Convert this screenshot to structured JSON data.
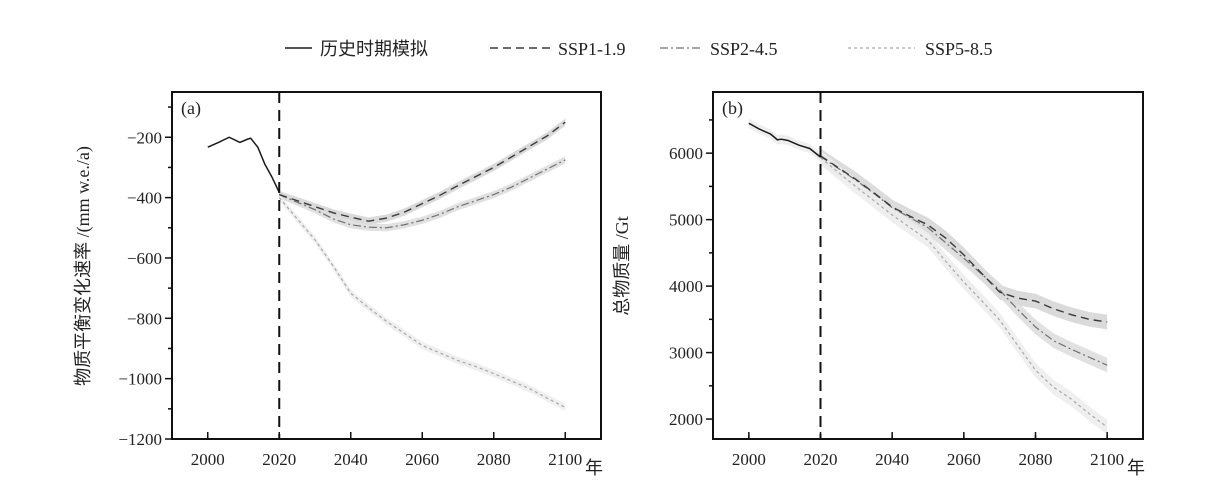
{
  "colors": {
    "history": "#1a1a1a",
    "ssp119": "#3a3a3a",
    "ssp245": "#707070",
    "ssp585": "#a8a8a8",
    "band_ssp119": "#d4d4d4",
    "band_ssp245": "#dcdcdc",
    "band_ssp585": "#ececec"
  },
  "legend": [
    {
      "key": "history",
      "label": "历史时期模拟",
      "style": "solid"
    },
    {
      "key": "ssp119",
      "label": "SSP1-1.9",
      "style": "dash"
    },
    {
      "key": "ssp245",
      "label": "SSP2-4.5",
      "style": "dashdot"
    },
    {
      "key": "ssp585",
      "label": "SSP5-8.5",
      "style": "dot"
    }
  ],
  "chart_data": [
    {
      "type": "line",
      "panel_label": "(a)",
      "ylabel": "物质平衡变化速率 /(mm w.e./a)",
      "xlabel": "年",
      "xlim": [
        1990,
        2110
      ],
      "ylim": [
        -1200,
        -50
      ],
      "xticks": [
        2000,
        2020,
        2040,
        2060,
        2080,
        2100
      ],
      "yticks": [
        -1200,
        -1000,
        -800,
        -600,
        -400,
        -200
      ],
      "ytick_labels": [
        "−1200",
        "−1000",
        "−800",
        "−600",
        "−400",
        "−200"
      ],
      "vline_x": 2020,
      "band_halfwidth": 12,
      "series": [
        {
          "key": "history",
          "name": "历史时期模拟",
          "x": [
            2000,
            2003,
            2006,
            2009,
            2011,
            2012,
            2014,
            2016,
            2018,
            2020
          ],
          "y": [
            -233,
            -217,
            -200,
            -217,
            -207,
            -203,
            -233,
            -290,
            -333,
            -383
          ]
        },
        {
          "key": "ssp119",
          "name": "SSP1-1.9",
          "x": [
            2020,
            2025,
            2030,
            2035,
            2040,
            2045,
            2050,
            2055,
            2060,
            2065,
            2070,
            2075,
            2080,
            2085,
            2090,
            2095,
            2100
          ],
          "y": [
            -390,
            -410,
            -430,
            -450,
            -465,
            -478,
            -468,
            -448,
            -420,
            -392,
            -360,
            -330,
            -300,
            -265,
            -230,
            -195,
            -150
          ]
        },
        {
          "key": "ssp245",
          "name": "SSP2-4.5",
          "x": [
            2020,
            2025,
            2030,
            2035,
            2040,
            2045,
            2050,
            2055,
            2060,
            2065,
            2070,
            2075,
            2080,
            2085,
            2090,
            2095,
            2100
          ],
          "y": [
            -390,
            -415,
            -440,
            -470,
            -490,
            -498,
            -500,
            -490,
            -475,
            -455,
            -430,
            -410,
            -390,
            -365,
            -335,
            -305,
            -275
          ]
        },
        {
          "key": "ssp585",
          "name": "SSP5-8.5",
          "x": [
            2020,
            2025,
            2030,
            2035,
            2040,
            2045,
            2050,
            2055,
            2060,
            2065,
            2070,
            2075,
            2080,
            2085,
            2090,
            2095,
            2100
          ],
          "y": [
            -400,
            -470,
            -540,
            -625,
            -717,
            -765,
            -810,
            -850,
            -890,
            -915,
            -940,
            -960,
            -983,
            -1008,
            -1033,
            -1065,
            -1095
          ]
        }
      ]
    },
    {
      "type": "line",
      "panel_label": "(b)",
      "ylabel": "总物质量 /Gt",
      "xlabel": "年",
      "xlim": [
        1990,
        2110
      ],
      "ylim": [
        1700,
        6920
      ],
      "xticks": [
        2000,
        2020,
        2040,
        2060,
        2080,
        2100
      ],
      "yticks": [
        2000,
        3000,
        4000,
        5000,
        6000
      ],
      "ytick_labels": [
        "2000",
        "3000",
        "4000",
        "5000",
        "6000"
      ],
      "vline_x": 2020,
      "band_halfwidth": 110,
      "series": [
        {
          "key": "history",
          "name": "历史时期模拟",
          "x": [
            2000,
            2003,
            2006,
            2008,
            2009,
            2011,
            2014,
            2017,
            2020
          ],
          "y": [
            6450,
            6360,
            6290,
            6200,
            6210,
            6190,
            6120,
            6070,
            5940
          ]
        },
        {
          "key": "ssp119",
          "name": "SSP1-1.9",
          "x": [
            2020,
            2025,
            2030,
            2035,
            2040,
            2045,
            2050,
            2055,
            2060,
            2065,
            2070,
            2075,
            2080,
            2085,
            2090,
            2095,
            2100
          ],
          "y": [
            5960,
            5780,
            5600,
            5400,
            5190,
            5050,
            4920,
            4720,
            4470,
            4190,
            3910,
            3820,
            3775,
            3660,
            3570,
            3500,
            3460
          ]
        },
        {
          "key": "ssp245",
          "name": "SSP2-4.5",
          "x": [
            2020,
            2025,
            2030,
            2035,
            2040,
            2045,
            2050,
            2055,
            2060,
            2065,
            2070,
            2075,
            2080,
            2085,
            2090,
            2095,
            2100
          ],
          "y": [
            5950,
            5770,
            5590,
            5390,
            5180,
            5030,
            4880,
            4650,
            4420,
            4180,
            3940,
            3650,
            3385,
            3180,
            3050,
            2930,
            2810
          ]
        },
        {
          "key": "ssp585",
          "name": "SSP5-8.5",
          "x": [
            2020,
            2025,
            2030,
            2035,
            2040,
            2045,
            2050,
            2055,
            2060,
            2065,
            2070,
            2075,
            2080,
            2085,
            2090,
            2095,
            2100
          ],
          "y": [
            5930,
            5710,
            5490,
            5280,
            5070,
            4880,
            4690,
            4370,
            4060,
            3780,
            3490,
            3110,
            2735,
            2480,
            2300,
            2080,
            1880
          ]
        }
      ]
    }
  ]
}
